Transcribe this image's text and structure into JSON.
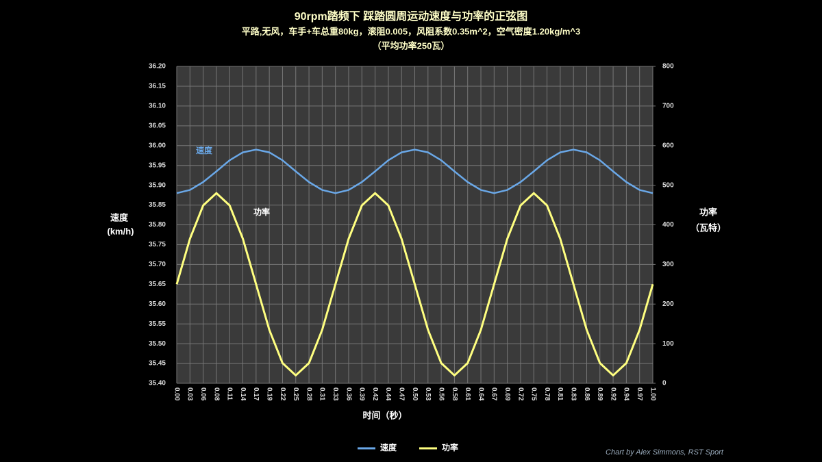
{
  "chart_data": {
    "type": "line",
    "title": "90rpm踏频下 踩踏圆周运动速度与功率的正弦图",
    "subtitle": [
      "平路,无风，车手+车总重80kg，滚阻0.005，风阻系数0.35m^2，空气密度1.20kg/m^3",
      "（平均功率250瓦）"
    ],
    "xlabel": "时间（秒）",
    "ylabel": [
      "速度",
      "(km/h)"
    ],
    "y2label": [
      "功率",
      "（瓦特）"
    ],
    "credit": "Chart by Alex Simmons, RST Sport",
    "annotations": [
      "速度",
      "功率"
    ],
    "categories": [
      "0.00",
      "0.03",
      "0.06",
      "0.08",
      "0.11",
      "0.14",
      "0.17",
      "0.19",
      "0.22",
      "0.25",
      "0.28",
      "0.31",
      "0.33",
      "0.36",
      "0.39",
      "0.42",
      "0.44",
      "0.47",
      "0.50",
      "0.53",
      "0.56",
      "0.58",
      "0.61",
      "0.64",
      "0.67",
      "0.69",
      "0.72",
      "0.75",
      "0.78",
      "0.81",
      "0.83",
      "0.86",
      "0.89",
      "0.92",
      "0.94",
      "0.97",
      "1.00"
    ],
    "series": [
      {
        "name": "速度",
        "color": "#6aa8e8",
        "axis": "y",
        "values": [
          35.88,
          35.888,
          35.908,
          35.935,
          35.963,
          35.983,
          35.99,
          35.983,
          35.963,
          35.935,
          35.908,
          35.888,
          35.88,
          35.888,
          35.908,
          35.935,
          35.963,
          35.983,
          35.99,
          35.983,
          35.963,
          35.935,
          35.908,
          35.888,
          35.88,
          35.888,
          35.908,
          35.935,
          35.963,
          35.983,
          35.99,
          35.983,
          35.963,
          35.935,
          35.908,
          35.888,
          35.88
        ]
      },
      {
        "name": "功率",
        "color": "#ffff80",
        "axis": "y2",
        "values": [
          250,
          365,
          449,
          480,
          449,
          365,
          250,
          135,
          51,
          20,
          51,
          135,
          250,
          365,
          449,
          480,
          449,
          365,
          250,
          135,
          51,
          20,
          51,
          135,
          250,
          365,
          449,
          480,
          449,
          365,
          250,
          135,
          51,
          20,
          51,
          135,
          250
        ]
      }
    ],
    "ylim": [
      35.4,
      36.2
    ],
    "yticks": [
      {
        "value": 35.4,
        "label": "35.40"
      },
      {
        "value": 35.45,
        "label": "35.45"
      },
      {
        "value": 35.5,
        "label": "35.50"
      },
      {
        "value": 35.55,
        "label": "35.55"
      },
      {
        "value": 35.6,
        "label": "35.60"
      },
      {
        "value": 35.65,
        "label": "35.65"
      },
      {
        "value": 35.7,
        "label": "35.70"
      },
      {
        "value": 35.75,
        "label": "35.75"
      },
      {
        "value": 35.8,
        "label": "35.80"
      },
      {
        "value": 35.85,
        "label": "35.85"
      },
      {
        "value": 35.9,
        "label": "35.90"
      },
      {
        "value": 35.95,
        "label": "35.95"
      },
      {
        "value": 36.0,
        "label": "36.00"
      },
      {
        "value": 36.05,
        "label": "36.05"
      },
      {
        "value": 36.1,
        "label": "36.10"
      },
      {
        "value": 36.15,
        "label": "36.15"
      },
      {
        "value": 36.2,
        "label": "36.20"
      }
    ],
    "y2lim": [
      0,
      800
    ],
    "y2ticks": [
      0,
      100,
      200,
      300,
      400,
      500,
      600,
      700,
      800
    ],
    "grid": true,
    "legend": "bottom"
  }
}
